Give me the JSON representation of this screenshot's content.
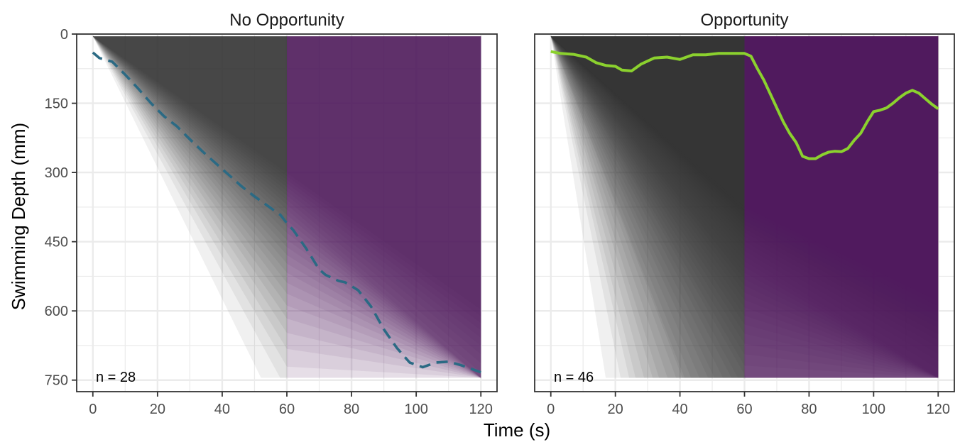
{
  "chart_data": {
    "type": "line",
    "xlabel": "Time (s)",
    "ylabel": "Swimming Depth (mm)",
    "xlim": [
      -5,
      125
    ],
    "ylim": [
      0,
      775
    ],
    "y_reversed": true,
    "x_ticks": [
      0,
      20,
      40,
      60,
      80,
      100,
      120
    ],
    "y_ticks": [
      0,
      150,
      300,
      450,
      600,
      750
    ],
    "grid": true,
    "colors": {
      "pre_phase": "#3a3a3a",
      "post_phase": "#4b1a63",
      "no_opportunity_line": "#2b6a84",
      "opportunity_line": "#8bd12e",
      "panel_border": "#333333",
      "grid": "#ebebeb"
    },
    "panels": [
      {
        "title": "No Opportunity",
        "n_label": "n = 28",
        "line_style": "dashed",
        "series": {
          "x": [
            0,
            2,
            6,
            10,
            14,
            18,
            22,
            26,
            30,
            34,
            38,
            42,
            46,
            50,
            54,
            58,
            60,
            62,
            66,
            70,
            72,
            76,
            78,
            82,
            86,
            90,
            94,
            98,
            102,
            106,
            110,
            114,
            118,
            120
          ],
          "y": [
            40,
            52,
            60,
            88,
            118,
            150,
            178,
            200,
            228,
            255,
            280,
            305,
            330,
            352,
            372,
            392,
            410,
            425,
            465,
            510,
            522,
            535,
            538,
            555,
            590,
            640,
            680,
            712,
            722,
            712,
            710,
            718,
            728,
            733
          ]
        },
        "envelope": {
          "outer_end_time": 55,
          "inner_end_time": 150,
          "layers": 28
        }
      },
      {
        "title": "Opportunity",
        "n_label": "n = 46",
        "line_style": "solid",
        "series": {
          "x": [
            0,
            3,
            7,
            11,
            14,
            17,
            20,
            22,
            25,
            28,
            32,
            36,
            40,
            44,
            48,
            52,
            56,
            60,
            62,
            64,
            66,
            68,
            70,
            72,
            74,
            76,
            78,
            80,
            82,
            84,
            86,
            88,
            90,
            92,
            94,
            96,
            98,
            100,
            102,
            104,
            106,
            108,
            110,
            112,
            114,
            116,
            118,
            120
          ],
          "y": [
            38,
            42,
            44,
            50,
            62,
            68,
            70,
            78,
            80,
            65,
            52,
            50,
            55,
            45,
            45,
            42,
            42,
            42,
            48,
            75,
            100,
            130,
            160,
            190,
            215,
            235,
            265,
            270,
            270,
            262,
            256,
            254,
            255,
            248,
            230,
            215,
            190,
            168,
            165,
            160,
            150,
            138,
            128,
            122,
            128,
            140,
            152,
            162
          ]
        },
        "envelope": {
          "outer_end_time": 20,
          "inner_end_time": 120,
          "layers": 46
        }
      }
    ]
  }
}
